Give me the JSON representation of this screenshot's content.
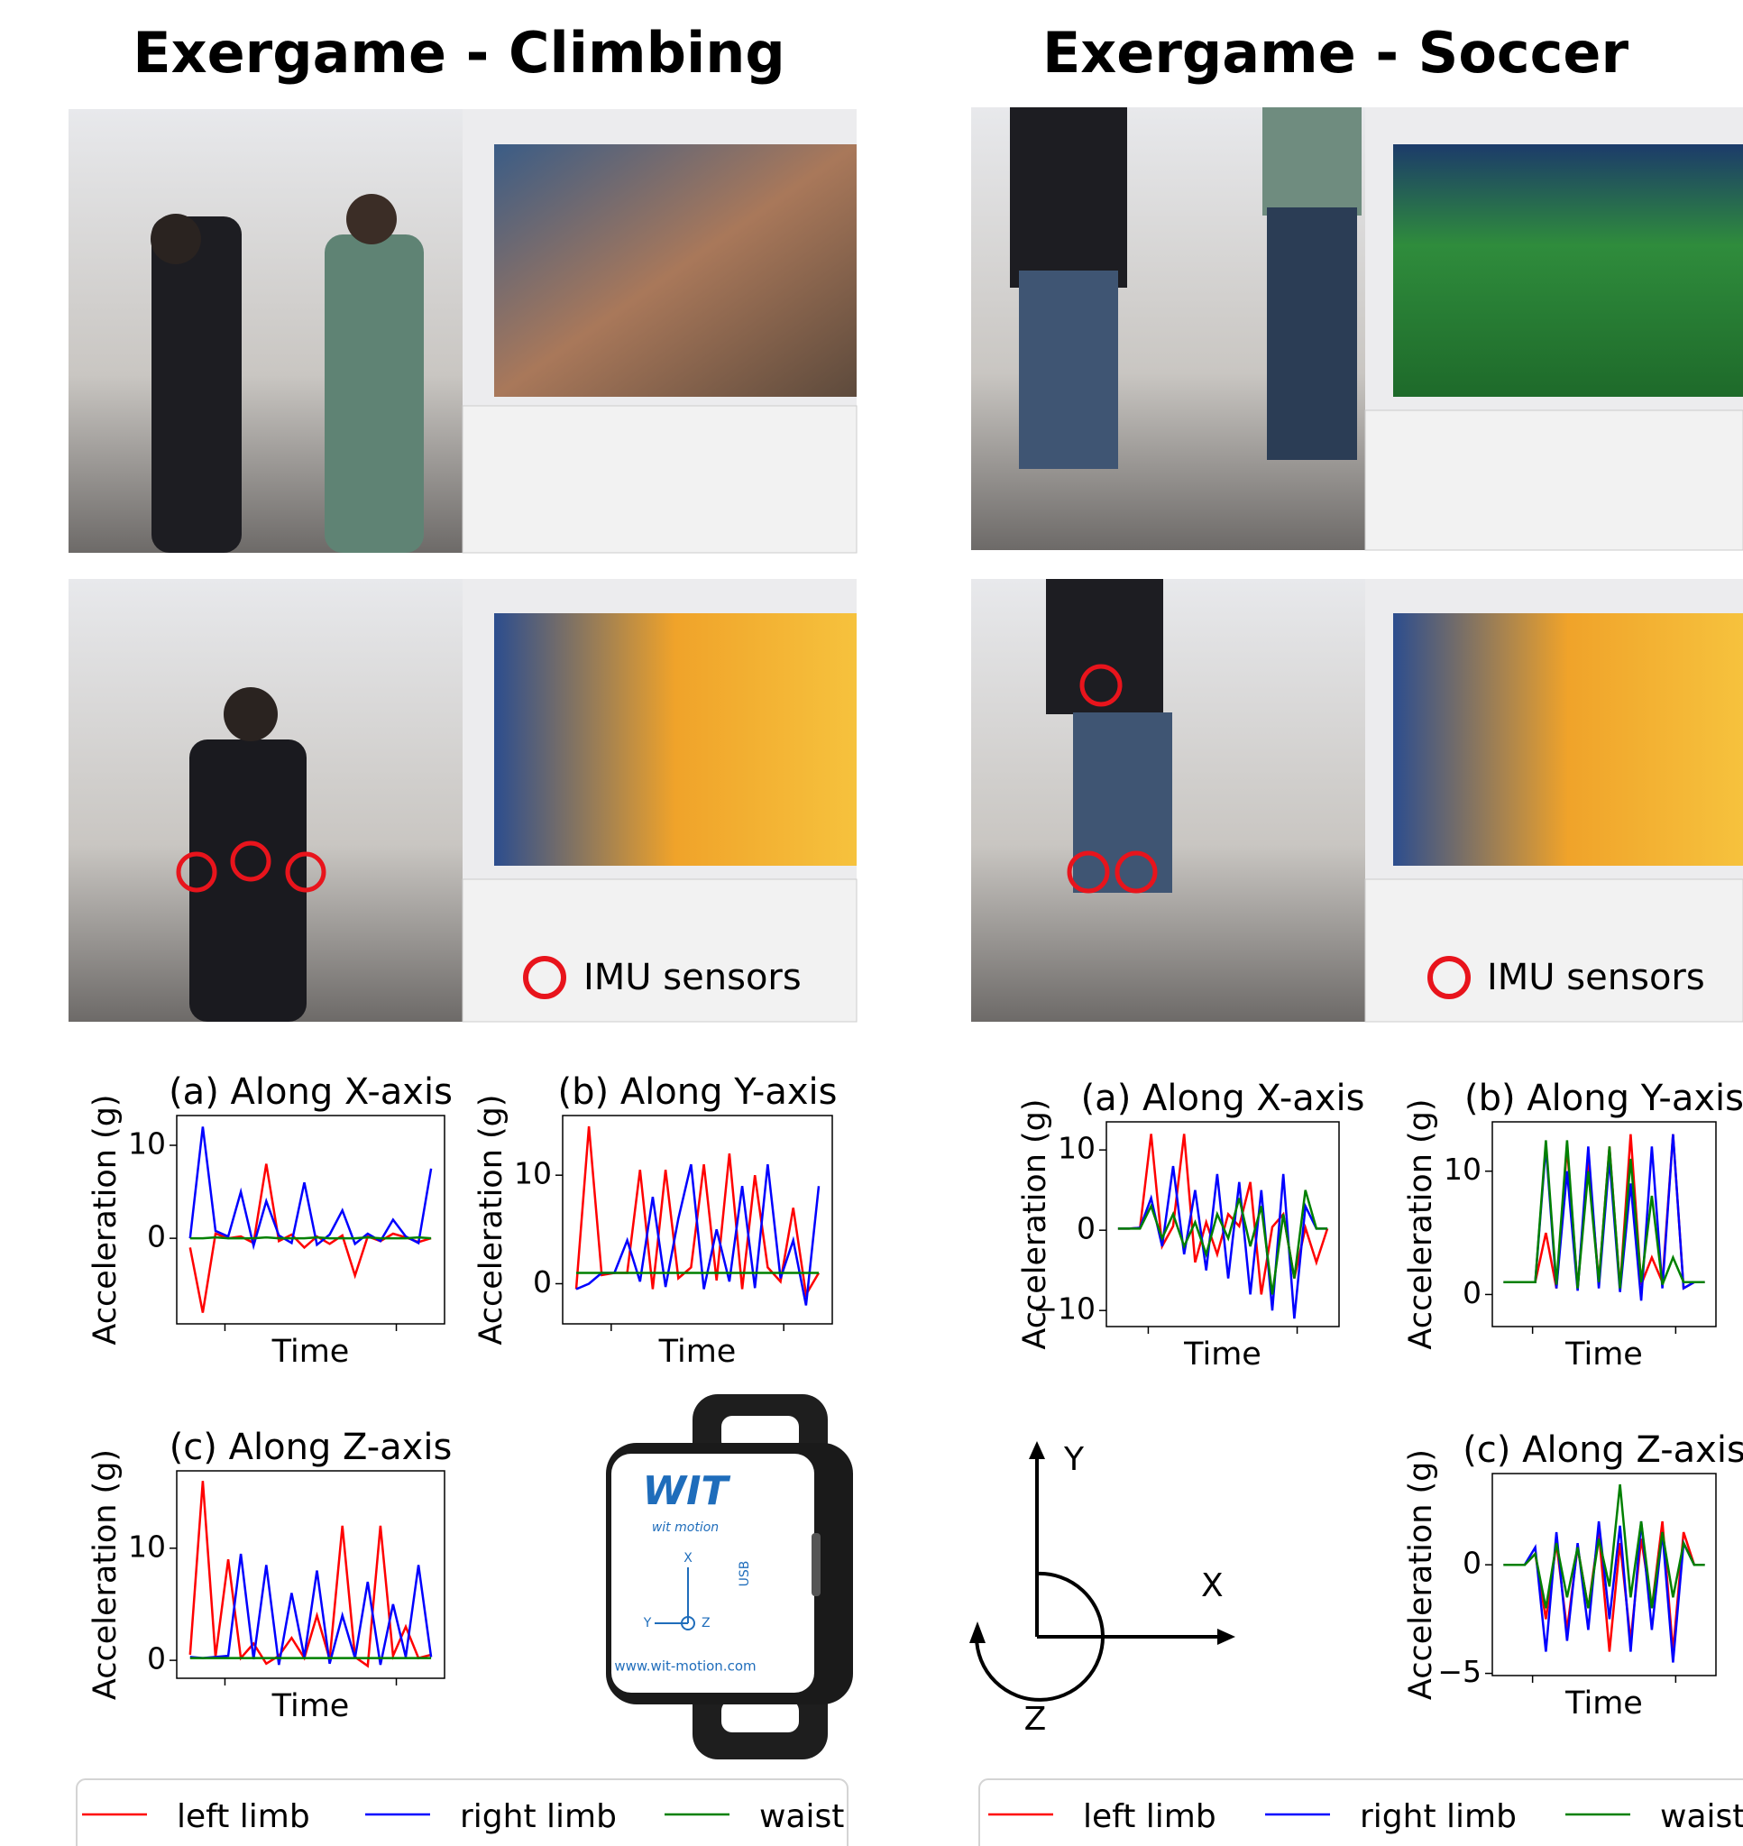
{
  "panels": [
    {
      "title": "Exergame - Climbing",
      "imu_label": "IMU sensors",
      "charts": [
        {
          "type": "line",
          "title": "(a) Along X-axis",
          "y_label": "Acceleration (g)",
          "x_label": "Time",
          "ylim": [
            -9.2,
            13.2
          ],
          "yticks": [
            0,
            10
          ],
          "series": [
            {
              "name": "left limb",
              "color": "#ff0000",
              "values": [
                -1,
                -8,
                0.5,
                0,
                0.2,
                -0.5,
                8,
                -0.3,
                0.4,
                -1,
                0.2,
                -0.6,
                0.3,
                -4,
                0.2,
                -0.3,
                0.5,
                0.1,
                -0.4,
                0
              ]
            },
            {
              "name": "right limb",
              "color": "#0000ff",
              "values": [
                0,
                12,
                0.8,
                0.2,
                5,
                -0.8,
                4,
                0.3,
                -0.5,
                6,
                -0.7,
                0.4,
                3,
                -0.6,
                0.5,
                -0.3,
                2,
                0.2,
                -0.5,
                7.5
              ]
            },
            {
              "name": "waist",
              "color": "#008000",
              "values": [
                0,
                0,
                0.1,
                0,
                0,
                0,
                0.1,
                0,
                0,
                0,
                0.1,
                0,
                0,
                0,
                0.1,
                0,
                0,
                0,
                0.1,
                0
              ]
            }
          ]
        },
        {
          "type": "line",
          "title": "(b) Along Y-axis",
          "y_label": "Acceleration (g)",
          "x_label": "Time",
          "ylim": [
            -3.7,
            15.5
          ],
          "yticks": [
            0,
            10
          ],
          "series": [
            {
              "name": "left limb",
              "color": "#ff0000",
              "values": [
                -0.5,
                14.5,
                0.8,
                1,
                1,
                10.5,
                -0.5,
                10.5,
                0.5,
                1.5,
                11,
                0.3,
                12,
                -0.5,
                10,
                1.5,
                0.2,
                7,
                -1,
                1
              ]
            },
            {
              "name": "right limb",
              "color": "#0000ff",
              "values": [
                -0.5,
                0,
                1,
                1,
                4,
                0.2,
                8,
                -0.3,
                6,
                11,
                -0.5,
                5,
                0.2,
                9,
                -0.4,
                11,
                0.5,
                4,
                -2,
                9
              ]
            },
            {
              "name": "waist",
              "color": "#008000",
              "values": [
                1,
                1,
                1,
                1,
                1,
                1,
                1,
                1,
                1,
                1,
                1,
                1,
                1,
                1,
                1,
                1,
                1,
                1,
                1,
                1
              ]
            }
          ]
        },
        {
          "type": "line",
          "title": "(c) Along Z-axis",
          "y_label": "Acceleration (g)",
          "x_label": "Time",
          "ylim": [
            -1.6,
            16.9
          ],
          "yticks": [
            0,
            10
          ],
          "series": [
            {
              "name": "left limb",
              "color": "#ff0000",
              "values": [
                0.5,
                16,
                0.3,
                9,
                0.2,
                1.5,
                -0.3,
                0.4,
                2,
                0.2,
                4,
                0.1,
                12,
                0.3,
                -0.5,
                12,
                0.4,
                3,
                0.2,
                0.5
              ]
            },
            {
              "name": "right limb",
              "color": "#0000ff",
              "values": [
                0.3,
                0.2,
                0.3,
                0.4,
                9.5,
                0.1,
                8.5,
                -0.4,
                6,
                0.3,
                8,
                -0.3,
                4,
                0.2,
                7,
                -0.4,
                5,
                0.3,
                8.5,
                0.3
              ]
            },
            {
              "name": "waist",
              "color": "#008000",
              "values": [
                0.2,
                0.2,
                0.2,
                0.2,
                0.2,
                0.2,
                0.2,
                0.2,
                0.2,
                0.2,
                0.2,
                0.2,
                0.2,
                0.2,
                0.2,
                0.2,
                0.2,
                0.2,
                0.2,
                0.2
              ]
            }
          ]
        }
      ]
    },
    {
      "title": "Exergame - Soccer",
      "imu_label": "IMU sensors",
      "charts": [
        {
          "type": "line",
          "title": "(a) Along X-axis",
          "y_label": "Acceleration (g)",
          "x_label": "Time",
          "ylim": [
            -12,
            13.5
          ],
          "yticks": [
            {
              "value": -10,
              "label": "−10"
            },
            0,
            10
          ],
          "series": [
            {
              "name": "left limb",
              "color": "#ff0000",
              "values": [
                0.2,
                0.2,
                0.3,
                12,
                -2,
                0.5,
                12,
                -4,
                1,
                -3,
                2,
                0.5,
                6,
                -8,
                0.4,
                2,
                -6,
                0.3,
                -4,
                0.2
              ]
            },
            {
              "name": "right limb",
              "color": "#0000ff",
              "values": [
                0.2,
                0.2,
                0.3,
                4,
                -2,
                8,
                -3,
                5,
                -5,
                7,
                -6,
                6,
                -8,
                5,
                -10,
                7,
                -11,
                3,
                0.2,
                0.2
              ]
            },
            {
              "name": "waist",
              "color": "#008000",
              "values": [
                0.2,
                0.2,
                0.2,
                3,
                -1,
                2,
                -2,
                1,
                -3,
                2,
                -1,
                4,
                -2,
                3,
                -8,
                2,
                -6,
                5,
                0.2,
                0.2
              ]
            }
          ]
        },
        {
          "type": "line",
          "title": "(b) Along Y-axis",
          "y_label": "Acceleration (g)",
          "x_label": "Time",
          "ylim": [
            -2.6,
            14
          ],
          "yticks": [
            0,
            10
          ],
          "series": [
            {
              "name": "left limb",
              "color": "#ff0000",
              "values": [
                1,
                1,
                1,
                1,
                5,
                0.5,
                12,
                0.5,
                11,
                1,
                12,
                0.5,
                13,
                0.8,
                3,
                1,
                13,
                0.5,
                1,
                1
              ]
            },
            {
              "name": "right limb",
              "color": "#0000ff",
              "values": [
                1,
                1,
                1,
                1,
                12,
                0.5,
                10,
                0.3,
                12,
                0.5,
                11,
                0.2,
                9,
                -0.5,
                12,
                0.5,
                13,
                0.5,
                1,
                1
              ]
            },
            {
              "name": "waist",
              "color": "#008000",
              "values": [
                1,
                1,
                1,
                1,
                12.5,
                0.8,
                12.5,
                0.5,
                10,
                1,
                12,
                0.5,
                11,
                1,
                8,
                0.8,
                3,
                1,
                1,
                1
              ]
            }
          ]
        },
        {
          "type": "line",
          "title": "(c) Along Z-axis",
          "y_label": "Acceleration (g)",
          "x_label": "Time",
          "ylim": [
            -5.1,
            4.2
          ],
          "yticks": [
            {
              "value": -5,
              "label": "−5"
            },
            0
          ],
          "series": [
            {
              "name": "left limb",
              "color": "#ff0000",
              "values": [
                0,
                0,
                0,
                0.5,
                -2.5,
                1,
                -3,
                0.8,
                -2,
                1.5,
                -4,
                1,
                -3.5,
                1.2,
                -2,
                2,
                -4,
                1.5,
                0,
                0
              ]
            },
            {
              "name": "right limb",
              "color": "#0000ff",
              "values": [
                0,
                0,
                0,
                0.8,
                -4,
                1.5,
                -3.5,
                1,
                -3,
                2,
                -2.5,
                1.8,
                -4,
                2,
                -3,
                1.5,
                -4.5,
                1,
                0,
                0
              ]
            },
            {
              "name": "waist",
              "color": "#008000",
              "values": [
                0,
                0,
                0,
                0.5,
                -2,
                1,
                -1.5,
                0.8,
                -2,
                1.2,
                -1,
                3.7,
                -1.5,
                2,
                -2,
                1.5,
                -1.5,
                1,
                0,
                0
              ]
            }
          ]
        }
      ]
    }
  ],
  "sensor": {
    "logo": "WIT",
    "brand": "wit motion",
    "port": "USB",
    "x": "X",
    "y": "Y",
    "z": "Z",
    "url": "www.wit-motion.com"
  },
  "axes_diagram": {
    "y": "Y",
    "x": "X",
    "z": "Z"
  }
}
